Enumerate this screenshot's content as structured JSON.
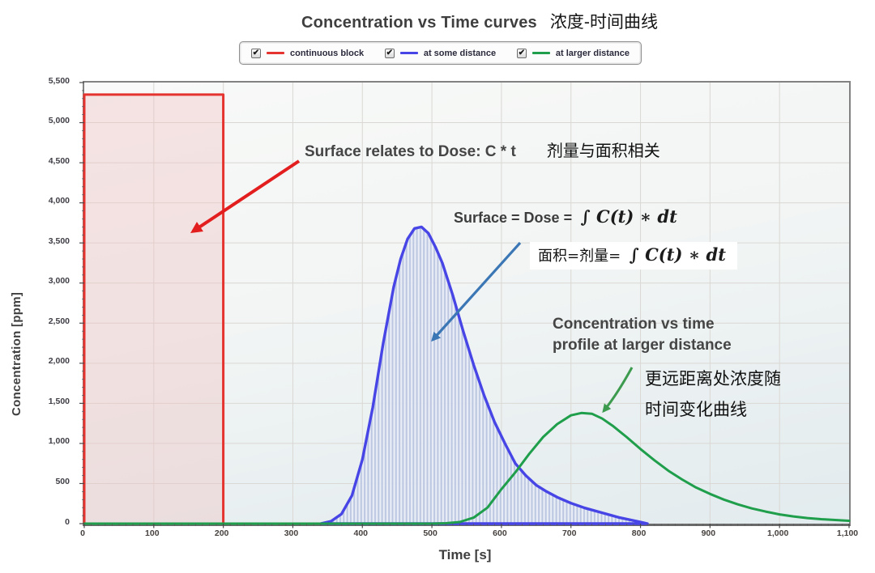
{
  "title": {
    "en": "Concentration vs Time curves",
    "zh": "浓度-时间曲线"
  },
  "legend": {
    "checkbox_icon": "checkbox-checked",
    "checkbox_glyph": "✔",
    "items": [
      {
        "label": "continuous block",
        "color": "#e5342f"
      },
      {
        "label": "at some distance",
        "color": "#4745e6"
      },
      {
        "label": "at larger distance",
        "color": "#1f9e4b"
      }
    ]
  },
  "annotations": {
    "surface_dose": {
      "en": "Surface relates to Dose: C * t",
      "zh": "剂量与面积相关"
    },
    "surface_formula_en": {
      "prefix": "Surface = Dose =",
      "formula": "∫ C(t) ∗ dt"
    },
    "surface_formula_zh": {
      "prefix": "面积=剂量=",
      "formula": "∫ C(t) ∗ dt"
    },
    "profile_en": "Concentration vs time\nprofile at larger distance",
    "profile_zh": "更远距离处浓度随\n时间变化曲线"
  },
  "colors": {
    "arrow_red": "#e31e1e",
    "arrow_blue": "#3b76b5",
    "arrow_green": "#3d9b4f",
    "grid": "#dad8d4",
    "plot_border": "#828282",
    "red_fill": "rgba(239,193,193,0.38)",
    "hatch_stripe": "#b9c4e0",
    "hatch_bg": "#e8edf6"
  },
  "chart_data": {
    "type": "line",
    "title": "Concentration vs Time curves",
    "title_zh": "浓度-时间曲线",
    "xlabel": "Time [s]",
    "ylabel": "Concentration [ppm]",
    "xlim": [
      0,
      1100
    ],
    "ylim": [
      0,
      5500
    ],
    "x_tick_step": 100,
    "y_tick_step": 500,
    "x_tick_labels": [
      "0",
      "100",
      "200",
      "300",
      "400",
      "500",
      "600",
      "700",
      "800",
      "900",
      "1,000",
      "1,100"
    ],
    "y_tick_labels": [
      "0",
      "500",
      "1,000",
      "1,500",
      "2,000",
      "2,500",
      "3,000",
      "3,500",
      "4,000",
      "4,500",
      "5,000",
      "5,500"
    ],
    "grid": true,
    "legend_position": "top",
    "series": [
      {
        "name": "continuous block",
        "color": "#e5342f",
        "fill": "red_fill",
        "closed": true,
        "points": [
          [
            0,
            0
          ],
          [
            0,
            5350
          ],
          [
            200,
            5350
          ],
          [
            200,
            0
          ]
        ]
      },
      {
        "name": "at some distance",
        "color": "#4745e6",
        "fill": "hatch",
        "closed": true,
        "points": [
          [
            340,
            0
          ],
          [
            355,
            30
          ],
          [
            370,
            120
          ],
          [
            385,
            350
          ],
          [
            400,
            800
          ],
          [
            415,
            1450
          ],
          [
            430,
            2250
          ],
          [
            445,
            2950
          ],
          [
            455,
            3300
          ],
          [
            465,
            3550
          ],
          [
            475,
            3680
          ],
          [
            485,
            3700
          ],
          [
            495,
            3620
          ],
          [
            505,
            3450
          ],
          [
            515,
            3250
          ],
          [
            530,
            2850
          ],
          [
            545,
            2400
          ],
          [
            560,
            1980
          ],
          [
            575,
            1600
          ],
          [
            590,
            1270
          ],
          [
            605,
            1000
          ],
          [
            620,
            750
          ],
          [
            635,
            600
          ],
          [
            650,
            480
          ],
          [
            665,
            400
          ],
          [
            680,
            330
          ],
          [
            700,
            255
          ],
          [
            720,
            195
          ],
          [
            745,
            135
          ],
          [
            770,
            75
          ],
          [
            800,
            20
          ],
          [
            810,
            0
          ]
        ]
      },
      {
        "name": "at larger distance",
        "color": "#1f9e4b",
        "fill": "none",
        "closed": false,
        "points": [
          [
            0,
            0
          ],
          [
            500,
            0
          ],
          [
            520,
            5
          ],
          [
            540,
            20
          ],
          [
            560,
            75
          ],
          [
            580,
            200
          ],
          [
            600,
            430
          ],
          [
            620,
            640
          ],
          [
            640,
            870
          ],
          [
            660,
            1080
          ],
          [
            680,
            1240
          ],
          [
            700,
            1350
          ],
          [
            715,
            1380
          ],
          [
            730,
            1370
          ],
          [
            745,
            1310
          ],
          [
            760,
            1220
          ],
          [
            780,
            1080
          ],
          [
            800,
            930
          ],
          [
            820,
            790
          ],
          [
            840,
            660
          ],
          [
            860,
            550
          ],
          [
            880,
            450
          ],
          [
            900,
            370
          ],
          [
            920,
            300
          ],
          [
            940,
            240
          ],
          [
            960,
            190
          ],
          [
            980,
            150
          ],
          [
            1000,
            115
          ],
          [
            1020,
            90
          ],
          [
            1040,
            70
          ],
          [
            1060,
            55
          ],
          [
            1080,
            45
          ],
          [
            1100,
            35
          ]
        ]
      }
    ]
  }
}
